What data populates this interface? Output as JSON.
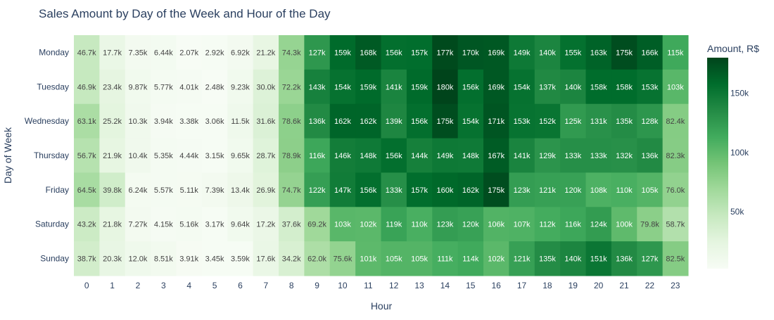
{
  "chart_data": {
    "type": "heatmap",
    "title": "Sales Amount by Day of the Week and Hour of the Day",
    "xlabel": "Hour",
    "ylabel": "Day of Week",
    "x": [
      0,
      1,
      2,
      3,
      4,
      5,
      6,
      7,
      8,
      9,
      10,
      11,
      12,
      13,
      14,
      15,
      16,
      17,
      18,
      19,
      20,
      21,
      22,
      23
    ],
    "y": [
      "Monday",
      "Tuesday",
      "Wednesday",
      "Thursday",
      "Friday",
      "Saturday",
      "Sunday"
    ],
    "values": [
      [
        46700,
        17700,
        7350,
        6440,
        2070,
        2920,
        6920,
        21200,
        74300,
        127000,
        159000,
        168000,
        156000,
        157000,
        177000,
        170000,
        169000,
        149000,
        140000,
        155000,
        163000,
        175000,
        166000,
        115000
      ],
      [
        46900,
        23400,
        9870,
        5770,
        4010,
        2480,
        9230,
        30000,
        72200,
        143000,
        154000,
        159000,
        141000,
        159000,
        180000,
        156000,
        169000,
        154000,
        137000,
        140000,
        158000,
        158000,
        153000,
        103000
      ],
      [
        63100,
        25200,
        10300,
        3940,
        3380,
        3060,
        11500,
        31600,
        78600,
        136000,
        162000,
        162000,
        139000,
        156000,
        175000,
        154000,
        171000,
        153000,
        152000,
        125000,
        131000,
        135000,
        128000,
        82400
      ],
      [
        56700,
        21900,
        10400,
        5350,
        4440,
        3150,
        9650,
        28700,
        78900,
        116000,
        146000,
        148000,
        156000,
        144000,
        149000,
        148000,
        167000,
        141000,
        129000,
        133000,
        133000,
        132000,
        136000,
        82300
      ],
      [
        64500,
        39800,
        6240,
        5570,
        5110,
        7390,
        13400,
        26900,
        74700,
        122000,
        147000,
        156000,
        133000,
        157000,
        160000,
        162000,
        175000,
        123000,
        121000,
        120000,
        108000,
        110000,
        105000,
        76000
      ],
      [
        43200,
        21800,
        7270,
        4150,
        5160,
        3170,
        9640,
        17200,
        37600,
        69200,
        103000,
        102000,
        119000,
        110000,
        123000,
        120000,
        106000,
        107000,
        112000,
        116000,
        124000,
        100000,
        79800,
        58700
      ],
      [
        38700,
        20300,
        12000,
        8510,
        3910,
        3450,
        3590,
        17600,
        34200,
        62000,
        75600,
        101000,
        105000,
        105000,
        111000,
        114000,
        102000,
        121000,
        135000,
        140000,
        151000,
        136000,
        127000,
        82500
      ]
    ],
    "labels": [
      [
        "46.7k",
        "17.7k",
        "7.35k",
        "6.44k",
        "2.07k",
        "2.92k",
        "6.92k",
        "21.2k",
        "74.3k",
        "127k",
        "159k",
        "168k",
        "156k",
        "157k",
        "177k",
        "170k",
        "169k",
        "149k",
        "140k",
        "155k",
        "163k",
        "175k",
        "166k",
        "115k"
      ],
      [
        "46.9k",
        "23.4k",
        "9.87k",
        "5.77k",
        "4.01k",
        "2.48k",
        "9.23k",
        "30.0k",
        "72.2k",
        "143k",
        "154k",
        "159k",
        "141k",
        "159k",
        "180k",
        "156k",
        "169k",
        "154k",
        "137k",
        "140k",
        "158k",
        "158k",
        "153k",
        "103k"
      ],
      [
        "63.1k",
        "25.2k",
        "10.3k",
        "3.94k",
        "3.38k",
        "3.06k",
        "11.5k",
        "31.6k",
        "78.6k",
        "136k",
        "162k",
        "162k",
        "139k",
        "156k",
        "175k",
        "154k",
        "171k",
        "153k",
        "152k",
        "125k",
        "131k",
        "135k",
        "128k",
        "82.4k"
      ],
      [
        "56.7k",
        "21.9k",
        "10.4k",
        "5.35k",
        "4.44k",
        "3.15k",
        "9.65k",
        "28.7k",
        "78.9k",
        "116k",
        "146k",
        "148k",
        "156k",
        "144k",
        "149k",
        "148k",
        "167k",
        "141k",
        "129k",
        "133k",
        "133k",
        "132k",
        "136k",
        "82.3k"
      ],
      [
        "64.5k",
        "39.8k",
        "6.24k",
        "5.57k",
        "5.11k",
        "7.39k",
        "13.4k",
        "26.9k",
        "74.7k",
        "122k",
        "147k",
        "156k",
        "133k",
        "157k",
        "160k",
        "162k",
        "175k",
        "123k",
        "121k",
        "120k",
        "108k",
        "110k",
        "105k",
        "76.0k"
      ],
      [
        "43.2k",
        "21.8k",
        "7.27k",
        "4.15k",
        "5.16k",
        "3.17k",
        "9.64k",
        "17.2k",
        "37.6k",
        "69.2k",
        "103k",
        "102k",
        "119k",
        "110k",
        "123k",
        "120k",
        "106k",
        "107k",
        "112k",
        "116k",
        "124k",
        "100k",
        "79.8k",
        "58.7k"
      ],
      [
        "38.7k",
        "20.3k",
        "12.0k",
        "8.51k",
        "3.91k",
        "3.45k",
        "3.59k",
        "17.6k",
        "34.2k",
        "62.0k",
        "75.6k",
        "101k",
        "105k",
        "105k",
        "111k",
        "114k",
        "102k",
        "121k",
        "135k",
        "140k",
        "151k",
        "136k",
        "127k",
        "82.5k"
      ]
    ],
    "colorscale": "Greens",
    "zmin": 2070,
    "zmax": 180000,
    "colorbar": {
      "title": "Amount, R$",
      "ticks": [
        50000,
        100000,
        150000
      ],
      "tick_labels": [
        "50k",
        "100k",
        "150k"
      ]
    }
  }
}
